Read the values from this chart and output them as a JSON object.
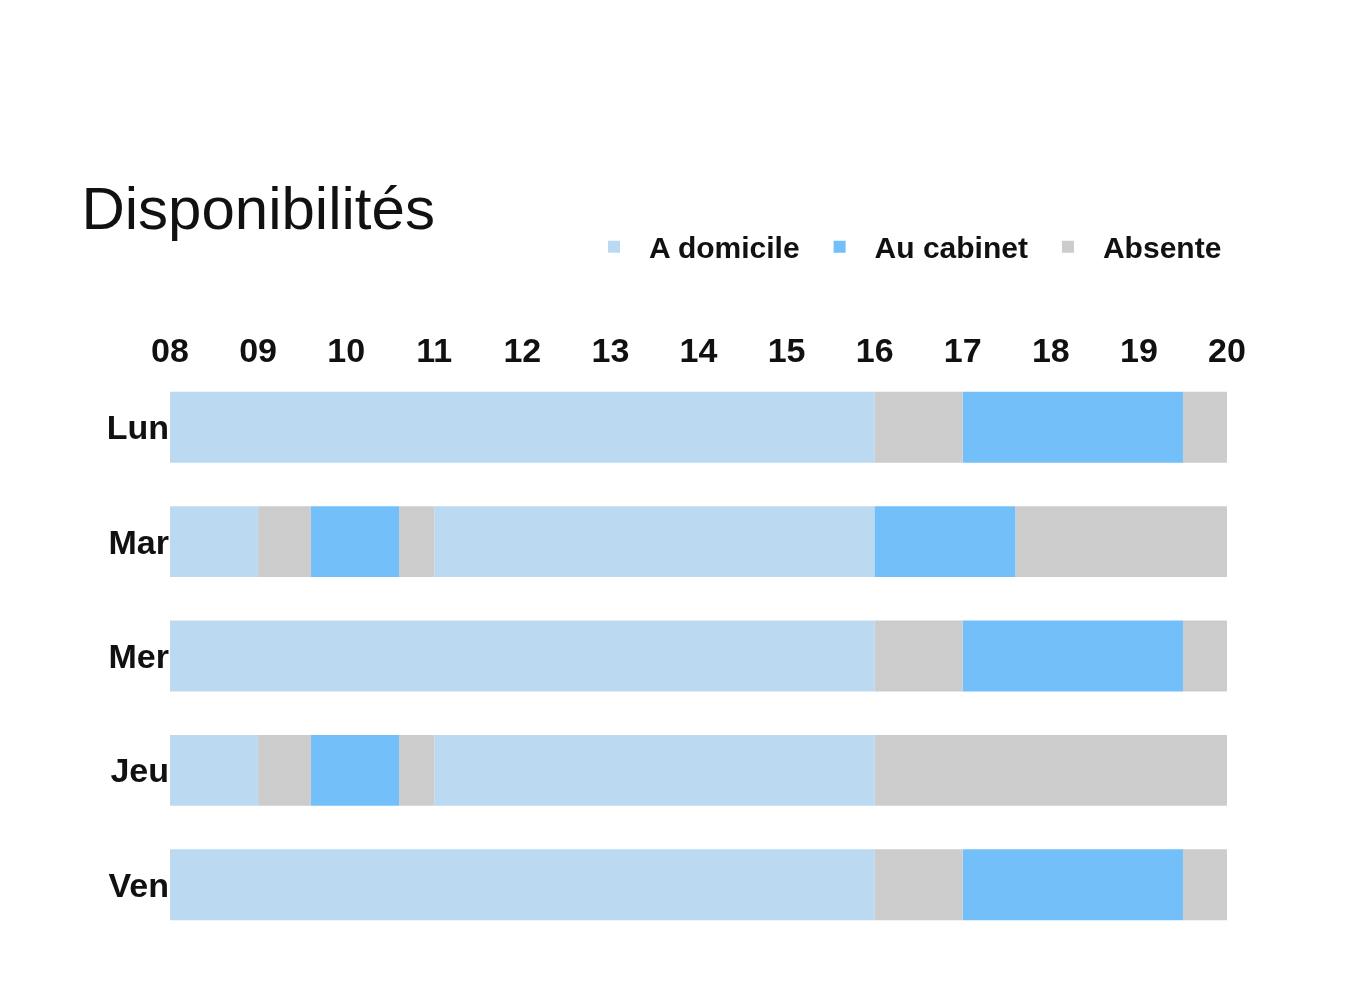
{
  "chart_data": {
    "type": "bar",
    "orientation": "horizontal",
    "title": "Disponibilités",
    "categories": [
      "Lun",
      "Mar",
      "Mer",
      "Jeu",
      "Ven"
    ],
    "xlim": [
      8,
      20
    ],
    "xticks": [
      {
        "value": 8,
        "label": "08"
      },
      {
        "value": 9,
        "label": "09"
      },
      10,
      11,
      12,
      13,
      14,
      15,
      16,
      17,
      18,
      19,
      20
    ],
    "grid": false,
    "legend": "top right",
    "series": [
      {
        "name": "A domicile",
        "color": "#bbdaf2",
        "base": [
          8,
          8,
          8,
          8,
          8
        ],
        "values": [
          8,
          1,
          8,
          1,
          8
        ]
      },
      {
        "name": "Au cabinet",
        "color": "#73bff9",
        "base": [
          17,
          9.6,
          17,
          9.6,
          17
        ],
        "values": [
          2.5,
          1,
          2.5,
          1,
          2.5
        ]
      },
      {
        "name": "Absente",
        "color": "#cccccc",
        "base": [
          16,
          9,
          16,
          9,
          16
        ],
        "values": [
          1,
          0.6,
          1,
          0.6,
          1
        ]
      },
      {
        "color": "#cccccc",
        "base": [
          19.5,
          10.6,
          19.5,
          10.6,
          19.5
        ],
        "values": [
          0.5,
          0.4,
          0.5,
          0.4,
          0.5
        ]
      },
      {
        "color": "#bbdaf2",
        "base": [
          null,
          11,
          null,
          11,
          null
        ],
        "values": [
          null,
          5,
          null,
          5,
          null
        ]
      },
      {
        "color": "#73bff9",
        "base": [
          null,
          16,
          null,
          null,
          null
        ],
        "values": [
          null,
          1.6,
          null,
          null,
          null
        ]
      },
      {
        "color": "#cccccc",
        "base": [
          null,
          17.6,
          null,
          16,
          null
        ],
        "values": [
          null,
          2.4,
          null,
          4,
          null
        ]
      }
    ]
  }
}
